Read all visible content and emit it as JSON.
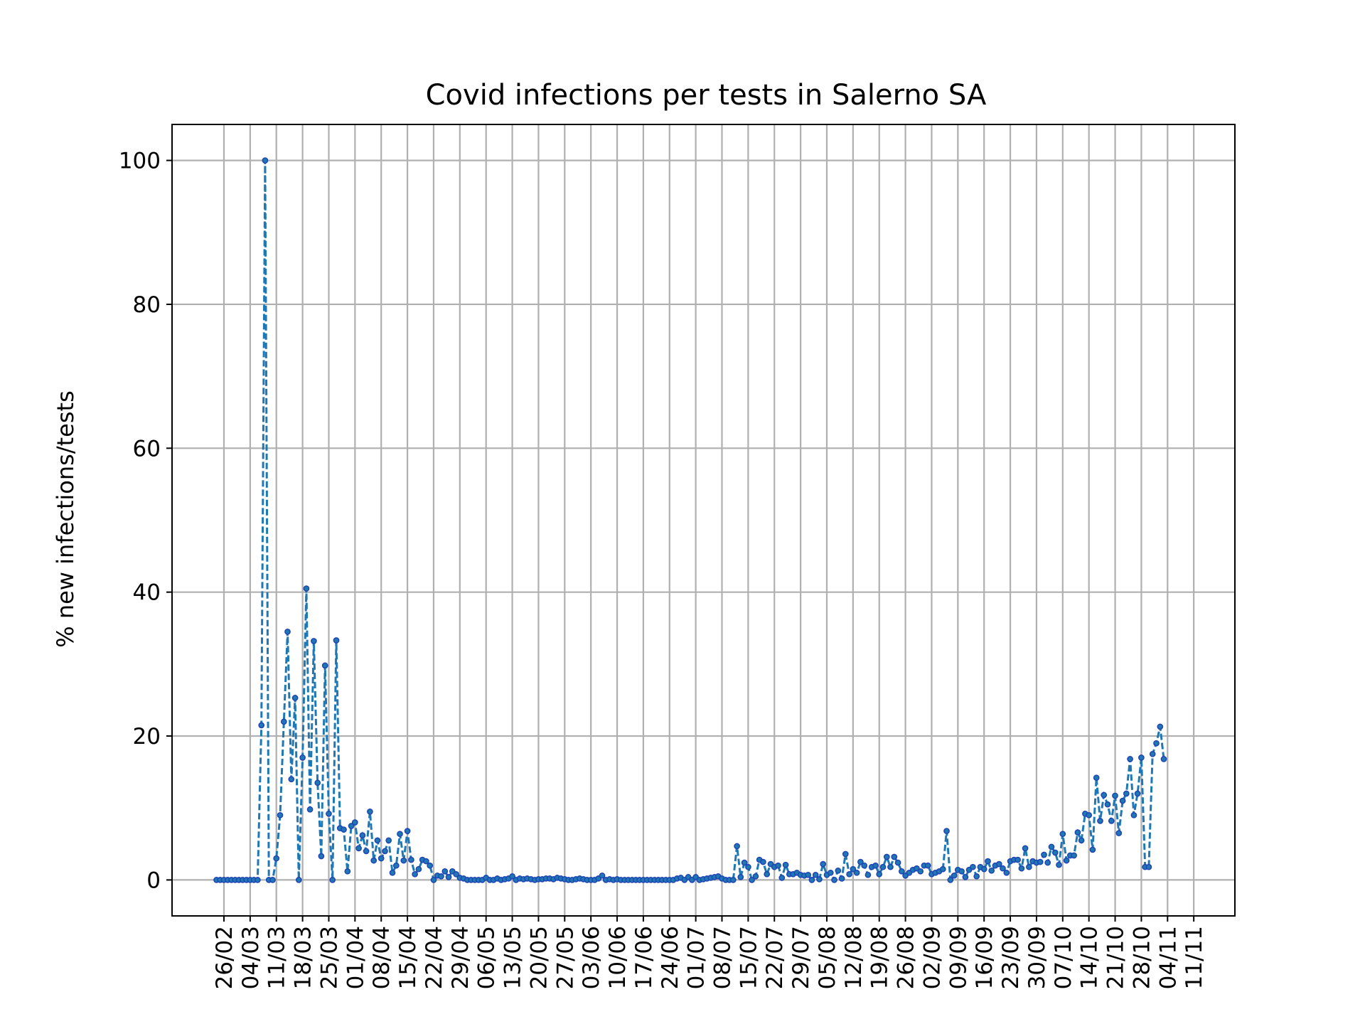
{
  "chart_data": {
    "type": "line",
    "title": "Covid infections per tests in Salerno SA",
    "xlabel": "",
    "ylabel": "% new infections/tests",
    "ylim": [
      -5,
      105
    ],
    "yticks": [
      0,
      20,
      40,
      60,
      80,
      100
    ],
    "grid": true,
    "legend": "none",
    "series_color": "#1f77b4",
    "line_style": "dashed",
    "marker": "dot",
    "x_start": "24/02",
    "x_tick_labels": [
      "26/02",
      "04/03",
      "11/03",
      "18/03",
      "25/03",
      "01/04",
      "08/04",
      "15/04",
      "22/04",
      "29/04",
      "06/05",
      "13/05",
      "20/05",
      "27/05",
      "03/06",
      "10/06",
      "17/06",
      "24/06",
      "01/07",
      "08/07",
      "15/07",
      "22/07",
      "29/07",
      "05/08",
      "12/08",
      "19/08",
      "26/08",
      "02/09",
      "09/09",
      "16/09",
      "23/09",
      "30/09",
      "07/10",
      "14/10",
      "21/10",
      "28/10",
      "04/11",
      "11/11"
    ],
    "y": [
      0,
      0,
      0,
      0,
      0,
      0,
      0,
      0,
      0,
      0,
      0,
      0,
      21.5,
      100,
      0,
      0,
      3,
      9,
      22,
      34.5,
      14,
      25.3,
      0,
      17,
      40.5,
      9.8,
      33.2,
      13.5,
      3.3,
      29.8,
      9.2,
      0,
      33.3,
      7.2,
      7,
      1.2,
      7.5,
      8,
      4.4,
      6.2,
      4,
      9.5,
      2.7,
      5.5,
      3,
      4,
      5.5,
      1,
      2,
      6.4,
      2.7,
      6.8,
      2.8,
      0.8,
      1.5,
      2.8,
      2.6,
      2,
      0,
      0.6,
      0.5,
      1.2,
      0.4,
      1.2,
      0.8,
      0.3,
      0.2,
      0,
      0,
      0,
      0,
      0,
      0.3,
      0,
      0,
      0.2,
      0,
      0.1,
      0.2,
      0.5,
      0,
      0.2,
      0.1,
      0.2,
      0.1,
      0,
      0.1,
      0.1,
      0.2,
      0.2,
      0.1,
      0.3,
      0.2,
      0.1,
      0,
      0,
      0.1,
      0.2,
      0.1,
      0,
      0,
      0,
      0.2,
      0.6,
      0,
      0.1,
      0,
      0.1,
      0,
      0,
      0,
      0,
      0,
      0,
      0,
      0,
      0,
      0,
      0,
      0,
      0,
      0,
      0,
      0.2,
      0.3,
      0,
      0.4,
      0,
      0.4,
      0,
      0.1,
      0.2,
      0.3,
      0.4,
      0.5,
      0.2,
      0,
      0,
      0,
      4.7,
      0.4,
      2.4,
      1.8,
      0,
      0.5,
      2.8,
      2.5,
      0.8,
      2.2,
      1.8,
      2,
      0.3,
      2.1,
      0.8,
      0.8,
      1,
      0.7,
      0.6,
      0.7,
      0,
      0.7,
      0.1,
      2.2,
      0.7,
      1,
      0,
      1.3,
      0.2,
      3.6,
      0.8,
      1.5,
      1,
      2.5,
      2,
      0.7,
      1.8,
      2,
      0.8,
      1.8,
      3.2,
      1.8,
      3.2,
      2.4,
      1.2,
      0.6,
      1,
      1.4,
      1.6,
      1.2,
      2,
      2,
      0.8,
      1,
      1.2,
      1.5,
      6.8,
      0,
      0.6,
      1.4,
      1.2,
      0.4,
      1.4,
      1.8,
      0.5,
      1.8,
      1.5,
      2.6,
      1.3,
      2,
      2.2,
      1.6,
      1,
      2.6,
      2.8,
      2.8,
      1.6,
      4.4,
      1.8,
      2.6,
      2.4,
      2.5,
      3.5,
      2.4,
      4.6,
      3.8,
      2.1,
      6.4,
      2.7,
      3.4,
      3.4,
      6.6,
      5.5,
      9.2,
      9,
      4.2,
      14.2,
      8.2,
      11.8,
      10.5,
      8.2,
      11.7,
      6.5,
      11,
      12,
      16.8,
      9,
      12,
      17,
      1.8,
      1.8,
      17.5,
      19,
      21.3,
      16.8
    ]
  }
}
